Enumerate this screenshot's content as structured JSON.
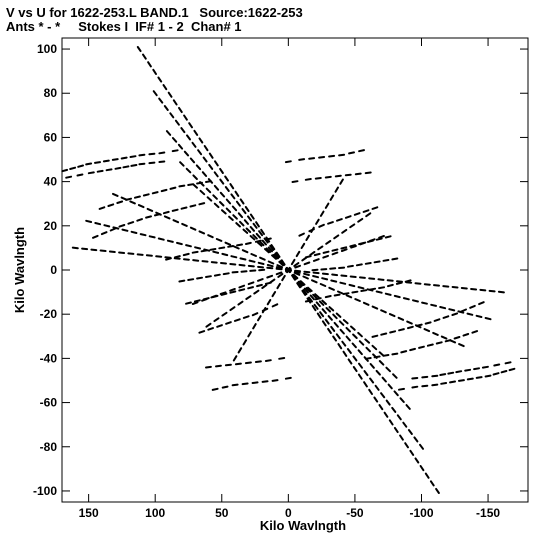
{
  "chart_data": {
    "type": "scatter",
    "title": "V vs U for 1622-253.L BAND.1   Source:1622-253",
    "subtitle": "Ants * - *     Stokes I  IF# 1 - 2  Chan# 1",
    "xlabel": "Kilo Wavlngth",
    "ylabel": "Kilo Wavlngth",
    "xlim": [
      170,
      -180
    ],
    "ylim": [
      -105,
      105
    ],
    "x_ticks": [
      150,
      100,
      50,
      0,
      -50,
      -100,
      -150
    ],
    "y_ticks": [
      100,
      80,
      60,
      40,
      20,
      0,
      -20,
      -40,
      -60,
      -80,
      -100
    ],
    "grid": false,
    "marker_color": "#000000",
    "tracks": [
      {
        "from": [
          112,
          100
        ],
        "to": [
          0,
          0
        ]
      },
      {
        "from": [
          100,
          80
        ],
        "to": [
          0,
          0
        ]
      },
      {
        "from": [
          90,
          62
        ],
        "to": [
          0,
          0
        ]
      },
      {
        "from": [
          80,
          48
        ],
        "to": [
          0,
          0
        ]
      },
      {
        "from": [
          70,
          38
        ],
        "to": [
          0,
          0
        ]
      },
      {
        "from": [
          130,
          34
        ],
        "to": [
          0,
          0
        ]
      },
      {
        "from": [
          150,
          22
        ],
        "to": [
          0,
          0
        ]
      },
      {
        "from": [
          160,
          10
        ],
        "to": [
          0,
          0
        ]
      },
      {
        "from": [
          70,
          -15
        ],
        "to": [
          0,
          0
        ]
      },
      {
        "from": [
          60,
          -25
        ],
        "to": [
          0,
          0
        ]
      },
      {
        "from": [
          40,
          -40
        ],
        "to": [
          0,
          0
        ]
      },
      {
        "from": [
          -112,
          -100
        ],
        "to": [
          0,
          0
        ]
      },
      {
        "from": [
          -100,
          -80
        ],
        "to": [
          0,
          0
        ]
      },
      {
        "from": [
          -90,
          -62
        ],
        "to": [
          0,
          0
        ]
      },
      {
        "from": [
          -80,
          -48
        ],
        "to": [
          0,
          0
        ]
      },
      {
        "from": [
          -70,
          -38
        ],
        "to": [
          0,
          0
        ]
      },
      {
        "from": [
          -130,
          -34
        ],
        "to": [
          0,
          0
        ]
      },
      {
        "from": [
          -150,
          -22
        ],
        "to": [
          0,
          0
        ]
      },
      {
        "from": [
          -160,
          -10
        ],
        "to": [
          0,
          0
        ]
      },
      {
        "from": [
          -70,
          15
        ],
        "to": [
          0,
          0
        ]
      },
      {
        "from": [
          -60,
          25
        ],
        "to": [
          0,
          0
        ]
      },
      {
        "from": [
          -40,
          40
        ],
        "to": [
          0,
          0
        ]
      }
    ],
    "arcs": [
      {
        "points": [
          [
            168,
            45
          ],
          [
            150,
            48
          ],
          [
            130,
            50
          ],
          [
            110,
            52
          ],
          [
            95,
            53
          ],
          [
            85,
            54
          ]
        ]
      },
      {
        "points": [
          [
            165,
            42
          ],
          [
            148,
            44
          ],
          [
            128,
            46
          ],
          [
            110,
            48
          ],
          [
            95,
            49
          ]
        ]
      },
      {
        "points": [
          [
            140,
            28
          ],
          [
            120,
            32
          ],
          [
            100,
            35
          ],
          [
            80,
            38
          ],
          [
            60,
            40
          ]
        ]
      },
      {
        "points": [
          [
            145,
            15
          ],
          [
            125,
            20
          ],
          [
            105,
            24
          ],
          [
            85,
            27
          ],
          [
            65,
            30
          ]
        ]
      },
      {
        "points": [
          [
            90,
            5
          ],
          [
            70,
            8
          ],
          [
            50,
            10
          ],
          [
            30,
            12
          ],
          [
            15,
            14
          ]
        ]
      },
      {
        "points": [
          [
            80,
            -5
          ],
          [
            60,
            -3
          ],
          [
            40,
            -1
          ],
          [
            20,
            0
          ]
        ]
      },
      {
        "points": [
          [
            75,
            -15
          ],
          [
            55,
            -12
          ],
          [
            35,
            -9
          ],
          [
            15,
            -6
          ]
        ]
      },
      {
        "points": [
          [
            65,
            -28
          ],
          [
            45,
            -24
          ],
          [
            25,
            -20
          ],
          [
            10,
            -16
          ]
        ]
      },
      {
        "points": [
          [
            60,
            -44
          ],
          [
            45,
            -43
          ],
          [
            30,
            -42
          ],
          [
            15,
            -41
          ],
          [
            5,
            -40
          ]
        ]
      },
      {
        "points": [
          [
            55,
            -54
          ],
          [
            40,
            -52
          ],
          [
            25,
            -51
          ],
          [
            10,
            -50
          ],
          [
            0,
            -49
          ]
        ]
      },
      {
        "points": [
          [
            -168,
            -45
          ],
          [
            -150,
            -48
          ],
          [
            -130,
            -50
          ],
          [
            -110,
            -52
          ],
          [
            -95,
            -53
          ],
          [
            -85,
            -54
          ]
        ]
      },
      {
        "points": [
          [
            -165,
            -42
          ],
          [
            -148,
            -44
          ],
          [
            -128,
            -46
          ],
          [
            -110,
            -48
          ],
          [
            -95,
            -49
          ]
        ]
      },
      {
        "points": [
          [
            -140,
            -28
          ],
          [
            -120,
            -32
          ],
          [
            -100,
            -35
          ],
          [
            -80,
            -38
          ],
          [
            -60,
            -40
          ]
        ]
      },
      {
        "points": [
          [
            -145,
            -15
          ],
          [
            -125,
            -20
          ],
          [
            -105,
            -24
          ],
          [
            -85,
            -27
          ],
          [
            -65,
            -30
          ]
        ]
      },
      {
        "points": [
          [
            -90,
            -5
          ],
          [
            -70,
            -8
          ],
          [
            -50,
            -10
          ],
          [
            -30,
            -12
          ],
          [
            -15,
            -14
          ]
        ]
      },
      {
        "points": [
          [
            -80,
            5
          ],
          [
            -60,
            3
          ],
          [
            -40,
            1
          ],
          [
            -20,
            0
          ]
        ]
      },
      {
        "points": [
          [
            -75,
            15
          ],
          [
            -55,
            12
          ],
          [
            -35,
            9
          ],
          [
            -15,
            6
          ]
        ]
      },
      {
        "points": [
          [
            -65,
            28
          ],
          [
            -45,
            24
          ],
          [
            -25,
            20
          ],
          [
            -10,
            16
          ]
        ]
      },
      {
        "points": [
          [
            -60,
            44
          ],
          [
            -45,
            43
          ],
          [
            -30,
            42
          ],
          [
            -15,
            41
          ],
          [
            -5,
            40
          ]
        ]
      },
      {
        "points": [
          [
            -55,
            54
          ],
          [
            -40,
            52
          ],
          [
            -25,
            51
          ],
          [
            -10,
            50
          ],
          [
            0,
            49
          ]
        ]
      }
    ]
  }
}
